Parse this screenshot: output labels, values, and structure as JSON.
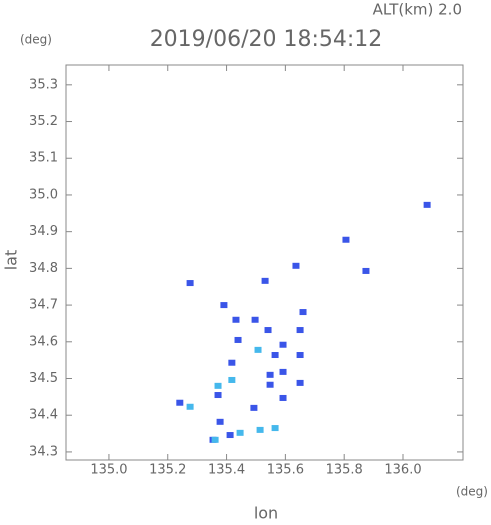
{
  "chart_data": {
    "type": "scatter",
    "title": "2019/06/20 18:54:12",
    "altitude_label": "ALT(km) 2.0",
    "y_unit": "(deg)",
    "x_unit": "(deg)",
    "x_label": "lon",
    "y_label": "lat",
    "xlim": [
      134.854,
      136.204
    ],
    "ylim": [
      34.278,
      35.354
    ],
    "xticks": [
      {
        "value": 135.0,
        "label": "135.0"
      },
      135.2,
      135.4,
      135.6,
      135.8,
      {
        "value": 136.0,
        "label": "136.0"
      }
    ],
    "yticks": [
      34.3,
      34.4,
      34.5,
      34.6,
      34.7,
      34.8,
      34.9,
      {
        "value": 35.0,
        "label": "35.0"
      },
      35.1,
      35.2,
      35.3
    ],
    "series": [
      {
        "color": "#3a55e8",
        "x": [
          136.082,
          135.806,
          135.636,
          135.874,
          135.531,
          135.276,
          135.391,
          135.66,
          135.432,
          135.497,
          135.541,
          135.65,
          135.439,
          135.592,
          135.65,
          135.565,
          135.418,
          135.548,
          135.592,
          135.65,
          135.548,
          135.371,
          135.592,
          135.493,
          135.241,
          135.378,
          135.412,
          135.354
        ],
        "values": [
          34.973,
          34.878,
          34.807,
          34.793,
          34.766,
          34.76,
          34.7,
          34.681,
          34.66,
          34.66,
          34.632,
          34.632,
          34.605,
          34.592,
          34.564,
          34.564,
          34.543,
          34.51,
          34.518,
          34.488,
          34.483,
          34.455,
          34.447,
          34.42,
          34.434,
          34.382,
          34.346,
          34.333
        ]
      },
      {
        "color": "#45b8ec",
        "x": [
          135.276,
          135.371,
          135.418,
          135.507,
          135.446,
          135.514,
          135.565,
          135.361
        ],
        "values": [
          34.423,
          34.48,
          34.496,
          34.578,
          34.352,
          34.36,
          34.365,
          34.333
        ]
      }
    ]
  }
}
